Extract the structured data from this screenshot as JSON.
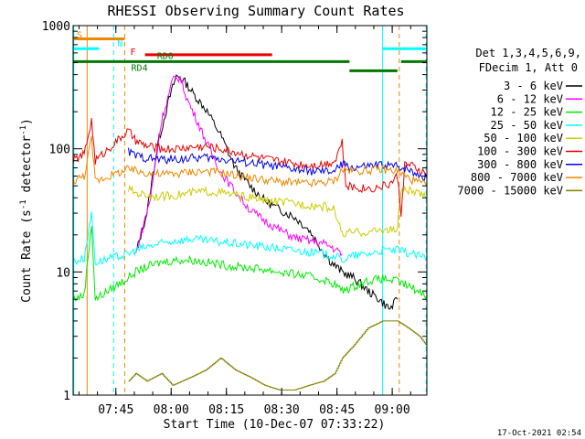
{
  "chart_data": {
    "type": "line",
    "title": "RHESSI Observing Summary Count Rates",
    "xlabel": "Start Time (10-Dec-07 07:33:22)",
    "ylabel": "Count Rate (s",
    "ylabel_sup": "-1",
    "ylabel_tail": " detector",
    "ylabel_close": ")",
    "y_scale": "log",
    "ylim": [
      1,
      1000
    ],
    "xlim_minutes": [
      0,
      96
    ],
    "y_ticks": [
      {
        "value": 1,
        "label": "1"
      },
      {
        "value": 10,
        "label": "10"
      },
      {
        "value": 100,
        "label": "100"
      },
      {
        "value": 1000,
        "label": "1000"
      }
    ],
    "x_ticks": [
      {
        "minute": 11.6,
        "label": "07:45"
      },
      {
        "minute": 26.6,
        "label": "08:00"
      },
      {
        "minute": 41.6,
        "label": "08:15"
      },
      {
        "minute": 56.6,
        "label": "08:30"
      },
      {
        "minute": 71.6,
        "label": "08:45"
      },
      {
        "minute": 86.6,
        "label": "09:00"
      }
    ],
    "legend_header": [
      "Det 1,3,4,5,6,9,",
      "FDecim 1, Att 0"
    ],
    "legend_position": "right",
    "footer_date": "17-Oct-2021 02:54",
    "series": [
      {
        "name": "3 - 6 keV",
        "color": "#000000",
        "points": [
          [
            17,
            14
          ],
          [
            20,
            30
          ],
          [
            23,
            110
          ],
          [
            26,
            250
          ],
          [
            28,
            390
          ],
          [
            30,
            360
          ],
          [
            33,
            270
          ],
          [
            36,
            210
          ],
          [
            40,
            130
          ],
          [
            44,
            70
          ],
          [
            48,
            50
          ],
          [
            52,
            38
          ],
          [
            56,
            32
          ],
          [
            60,
            28
          ],
          [
            64,
            22
          ],
          [
            67,
            16
          ],
          [
            70,
            12
          ],
          [
            73,
            10
          ],
          [
            76,
            9
          ],
          [
            78,
            8
          ],
          [
            80,
            7
          ],
          [
            83,
            6
          ],
          [
            86,
            5
          ],
          [
            88,
            6
          ]
        ]
      },
      {
        "name": "6 - 12 keV",
        "color": "#ff00ff",
        "points": [
          [
            17,
            14
          ],
          [
            21,
            40
          ],
          [
            24,
            170
          ],
          [
            27,
            360
          ],
          [
            29,
            380
          ],
          [
            31,
            250
          ],
          [
            34,
            160
          ],
          [
            37,
            100
          ],
          [
            40,
            65
          ],
          [
            44,
            45
          ],
          [
            48,
            32
          ],
          [
            52,
            26
          ],
          [
            56,
            22
          ],
          [
            60,
            19
          ],
          [
            64,
            18
          ],
          [
            68,
            17
          ],
          [
            70,
            16
          ],
          [
            73,
            14
          ]
        ]
      },
      {
        "name": "12 - 25 keV",
        "color": "#00ee00",
        "points": [
          [
            0,
            6
          ],
          [
            3,
            6.5
          ],
          [
            5,
            25
          ],
          [
            6,
            6
          ],
          [
            15,
            9
          ],
          [
            17,
            10
          ],
          [
            20,
            11
          ],
          [
            24,
            12
          ],
          [
            28,
            12.5
          ],
          [
            32,
            12.5
          ],
          [
            36,
            12
          ],
          [
            40,
            11.5
          ],
          [
            44,
            11
          ],
          [
            48,
            10.8
          ],
          [
            52,
            10.5
          ],
          [
            56,
            10
          ],
          [
            60,
            9.6
          ],
          [
            64,
            9.2
          ],
          [
            68,
            8.6
          ],
          [
            71,
            8
          ],
          [
            73,
            7
          ],
          [
            76,
            7.6
          ],
          [
            80,
            8.5
          ],
          [
            84,
            8.8
          ],
          [
            88,
            8.4
          ],
          [
            92,
            7.4
          ],
          [
            96,
            6.5
          ]
        ]
      },
      {
        "name": "25 - 50 keV",
        "color": "#00ffff",
        "points": [
          [
            0,
            12
          ],
          [
            3,
            13
          ],
          [
            5,
            30
          ],
          [
            6,
            12
          ],
          [
            15,
            14
          ],
          [
            17,
            15
          ],
          [
            20,
            16
          ],
          [
            24,
            17
          ],
          [
            28,
            18
          ],
          [
            32,
            18.5
          ],
          [
            36,
            18
          ],
          [
            40,
            17.5
          ],
          [
            44,
            17
          ],
          [
            48,
            16.5
          ],
          [
            52,
            16
          ],
          [
            56,
            15.5
          ],
          [
            60,
            15
          ],
          [
            64,
            14.5
          ],
          [
            68,
            14
          ],
          [
            71,
            13.5
          ],
          [
            73,
            12.5
          ],
          [
            76,
            13.5
          ],
          [
            80,
            14
          ],
          [
            84,
            15
          ],
          [
            88,
            15
          ],
          [
            92,
            14
          ],
          [
            96,
            13
          ]
        ]
      },
      {
        "name": "50 - 100 keV",
        "color": "#cccc00",
        "points": [
          [
            15,
            47
          ],
          [
            17,
            44
          ],
          [
            20,
            42
          ],
          [
            24,
            41
          ],
          [
            28,
            42
          ],
          [
            32,
            44
          ],
          [
            36,
            45
          ],
          [
            40,
            44
          ],
          [
            44,
            42
          ],
          [
            48,
            40
          ],
          [
            52,
            38
          ],
          [
            56,
            37
          ],
          [
            60,
            36
          ],
          [
            64,
            35
          ],
          [
            68,
            34
          ],
          [
            71,
            32
          ],
          [
            73,
            20
          ],
          [
            76,
            21
          ],
          [
            80,
            21
          ],
          [
            84,
            22
          ],
          [
            88,
            22
          ],
          [
            89,
            47
          ],
          [
            92,
            45
          ],
          [
            96,
            40
          ]
        ]
      },
      {
        "name": "100 - 300 keV",
        "color": "#ee0000",
        "points": [
          [
            0,
            80
          ],
          [
            3,
            90
          ],
          [
            5,
            170
          ],
          [
            6,
            80
          ],
          [
            15,
            140
          ],
          [
            17,
            115
          ],
          [
            20,
            105
          ],
          [
            24,
            100
          ],
          [
            28,
            100
          ],
          [
            32,
            103
          ],
          [
            36,
            105
          ],
          [
            40,
            100
          ],
          [
            44,
            94
          ],
          [
            48,
            88
          ],
          [
            52,
            83
          ],
          [
            56,
            79
          ],
          [
            60,
            76
          ],
          [
            64,
            74
          ],
          [
            68,
            75
          ],
          [
            71,
            80
          ],
          [
            73,
            115
          ],
          [
            74,
            50
          ],
          [
            78,
            48
          ],
          [
            82,
            48
          ],
          [
            86,
            52
          ],
          [
            88,
            60
          ],
          [
            89,
            30
          ],
          [
            90,
            75
          ],
          [
            92,
            72
          ],
          [
            96,
            62
          ]
        ]
      },
      {
        "name": "300 - 800 keV",
        "color": "#0000ee",
        "points": [
          [
            15,
            95
          ],
          [
            17,
            88
          ],
          [
            20,
            84
          ],
          [
            24,
            82
          ],
          [
            28,
            82
          ],
          [
            32,
            84
          ],
          [
            36,
            85
          ],
          [
            40,
            83
          ],
          [
            44,
            80
          ],
          [
            48,
            77
          ],
          [
            52,
            74
          ],
          [
            56,
            71
          ],
          [
            60,
            68
          ],
          [
            64,
            66
          ],
          [
            68,
            65
          ],
          [
            71,
            66
          ],
          [
            73,
            75
          ],
          [
            76,
            70
          ],
          [
            80,
            72
          ],
          [
            84,
            74
          ],
          [
            88,
            72
          ],
          [
            90,
            70
          ],
          [
            92,
            66
          ],
          [
            96,
            58
          ]
        ]
      },
      {
        "name": "800 - 7000 keV",
        "color": "#ee8800",
        "points": [
          [
            0,
            55
          ],
          [
            3,
            60
          ],
          [
            5,
            120
          ],
          [
            6,
            55
          ],
          [
            15,
            68
          ],
          [
            17,
            66
          ],
          [
            20,
            64
          ],
          [
            24,
            62
          ],
          [
            28,
            63
          ],
          [
            32,
            65
          ],
          [
            36,
            66
          ],
          [
            40,
            64
          ],
          [
            44,
            61
          ],
          [
            48,
            58
          ],
          [
            52,
            56
          ],
          [
            56,
            54
          ],
          [
            60,
            53
          ],
          [
            64,
            52
          ],
          [
            68,
            53
          ],
          [
            71,
            55
          ],
          [
            73,
            68
          ],
          [
            76,
            66
          ],
          [
            80,
            67
          ],
          [
            84,
            68
          ],
          [
            88,
            66
          ],
          [
            90,
            60
          ],
          [
            92,
            56
          ],
          [
            96,
            50
          ]
        ]
      },
      {
        "name": "7000 - 15000 keV",
        "color": "#808000",
        "points": [
          [
            15,
            1.3
          ],
          [
            17,
            1.5
          ],
          [
            20,
            1.3
          ],
          [
            24,
            1.5
          ],
          [
            27,
            1.2
          ],
          [
            32,
            1.4
          ],
          [
            36,
            1.6
          ],
          [
            40,
            2.0
          ],
          [
            44,
            1.6
          ],
          [
            48,
            1.4
          ],
          [
            52,
            1.2
          ],
          [
            56,
            1.1
          ],
          [
            60,
            1.1
          ],
          [
            64,
            1.2
          ],
          [
            68,
            1.3
          ],
          [
            71,
            1.5
          ],
          [
            73,
            2.0
          ],
          [
            76,
            2.5
          ],
          [
            80,
            3.5
          ],
          [
            84,
            4.0
          ],
          [
            88,
            4.0
          ],
          [
            91,
            3.5
          ],
          [
            94,
            3.0
          ],
          [
            96,
            2.5
          ]
        ]
      }
    ],
    "annotations": [
      {
        "label": "S",
        "color": "#ee8800"
      },
      {
        "label": "N",
        "color": "#00ffff"
      },
      {
        "label": "F",
        "color": "#ee0000"
      },
      {
        "label": "RD0",
        "color": "#007700"
      },
      {
        "label": "RD4",
        "color": "#007700"
      }
    ],
    "flag_bars": [
      {
        "color": "#00ffff",
        "y": 650,
        "x0": 0,
        "x1": 7
      },
      {
        "color": "#ee8800",
        "y": 780,
        "x0": 0,
        "x1": 14
      },
      {
        "color": "#ee0000",
        "y": 580,
        "x0": 19.5,
        "x1": 54
      },
      {
        "color": "#007700",
        "y": 510,
        "x0": 0,
        "x1": 75
      },
      {
        "color": "#007700",
        "y": 430,
        "x0": 75,
        "x1": 88
      },
      {
        "color": "#007700",
        "y": 510,
        "x0": 89,
        "x1": 96
      },
      {
        "color": "#00ffff",
        "y": 650,
        "x0": 84,
        "x1": 96
      }
    ],
    "vlines": [
      {
        "x": 0.2,
        "color": "#00ffff",
        "dash": false
      },
      {
        "x": 3.8,
        "color": "#ee8800",
        "dash": false
      },
      {
        "x": 11,
        "color": "#00ffff",
        "dash": true
      },
      {
        "x": 14,
        "color": "#ee8800",
        "dash": true
      },
      {
        "x": 84,
        "color": "#00ffff",
        "dash": false
      },
      {
        "x": 88.5,
        "color": "#ee8800",
        "dash": true
      },
      {
        "x": 95.8,
        "color": "#00ffff",
        "dash": true
      }
    ]
  }
}
